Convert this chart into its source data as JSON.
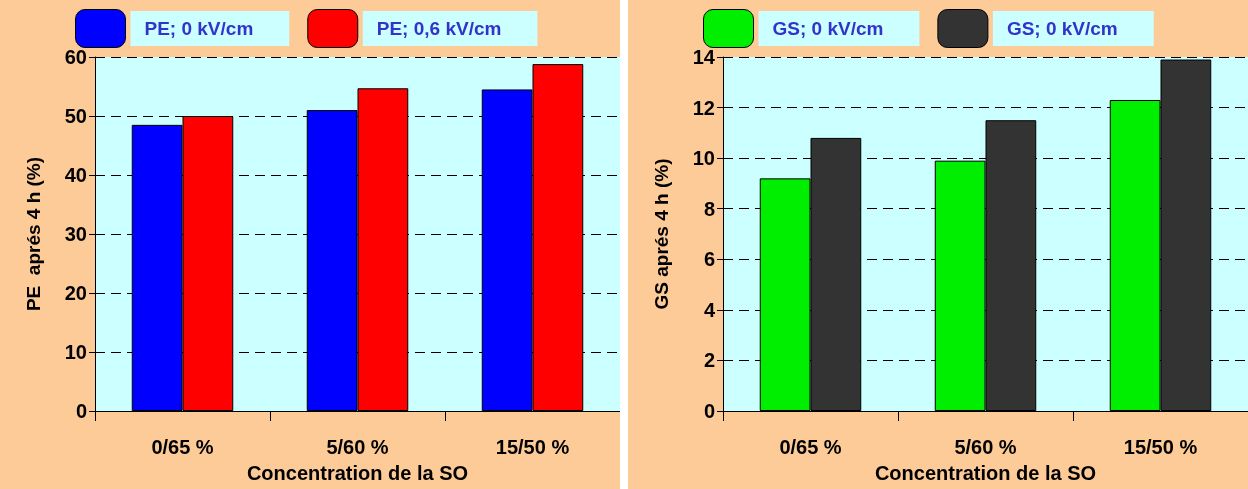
{
  "chart_data": [
    {
      "type": "bar",
      "categories": [
        "0/65 %",
        "5/60 %",
        "15/50 %"
      ],
      "xlabel": "Concentration de la SO",
      "ylabel": "PE  aprés 4 h (%)",
      "ylim": [
        0,
        60
      ],
      "yticks": [
        0,
        10,
        20,
        30,
        40,
        50,
        60
      ],
      "grid": "y",
      "legend": "top",
      "series": [
        {
          "name": "PE; 0 kV/cm",
          "color": "#0000ff",
          "values": [
            48.5,
            51,
            54.5
          ]
        },
        {
          "name": "PE; 0,6 kV/cm",
          "color": "#ff0000",
          "values": [
            50,
            54.7,
            58.8
          ]
        }
      ]
    },
    {
      "type": "bar",
      "categories": [
        "0/65 %",
        "5/60 %",
        "15/50 %"
      ],
      "xlabel": "Concentration de la SO",
      "ylabel": "GS aprés 4 h (%)",
      "ylim": [
        0,
        14
      ],
      "yticks": [
        0,
        2,
        4,
        6,
        8,
        10,
        12,
        14
      ],
      "grid": "y",
      "legend": "top",
      "series": [
        {
          "name": "GS; 0 kV/cm",
          "color": "#00ee00",
          "values": [
            9.2,
            9.9,
            12.3
          ]
        },
        {
          "name": "GS; 0 kV/cm",
          "color": "#333333",
          "values": [
            10.8,
            11.5,
            13.9
          ]
        }
      ]
    }
  ]
}
